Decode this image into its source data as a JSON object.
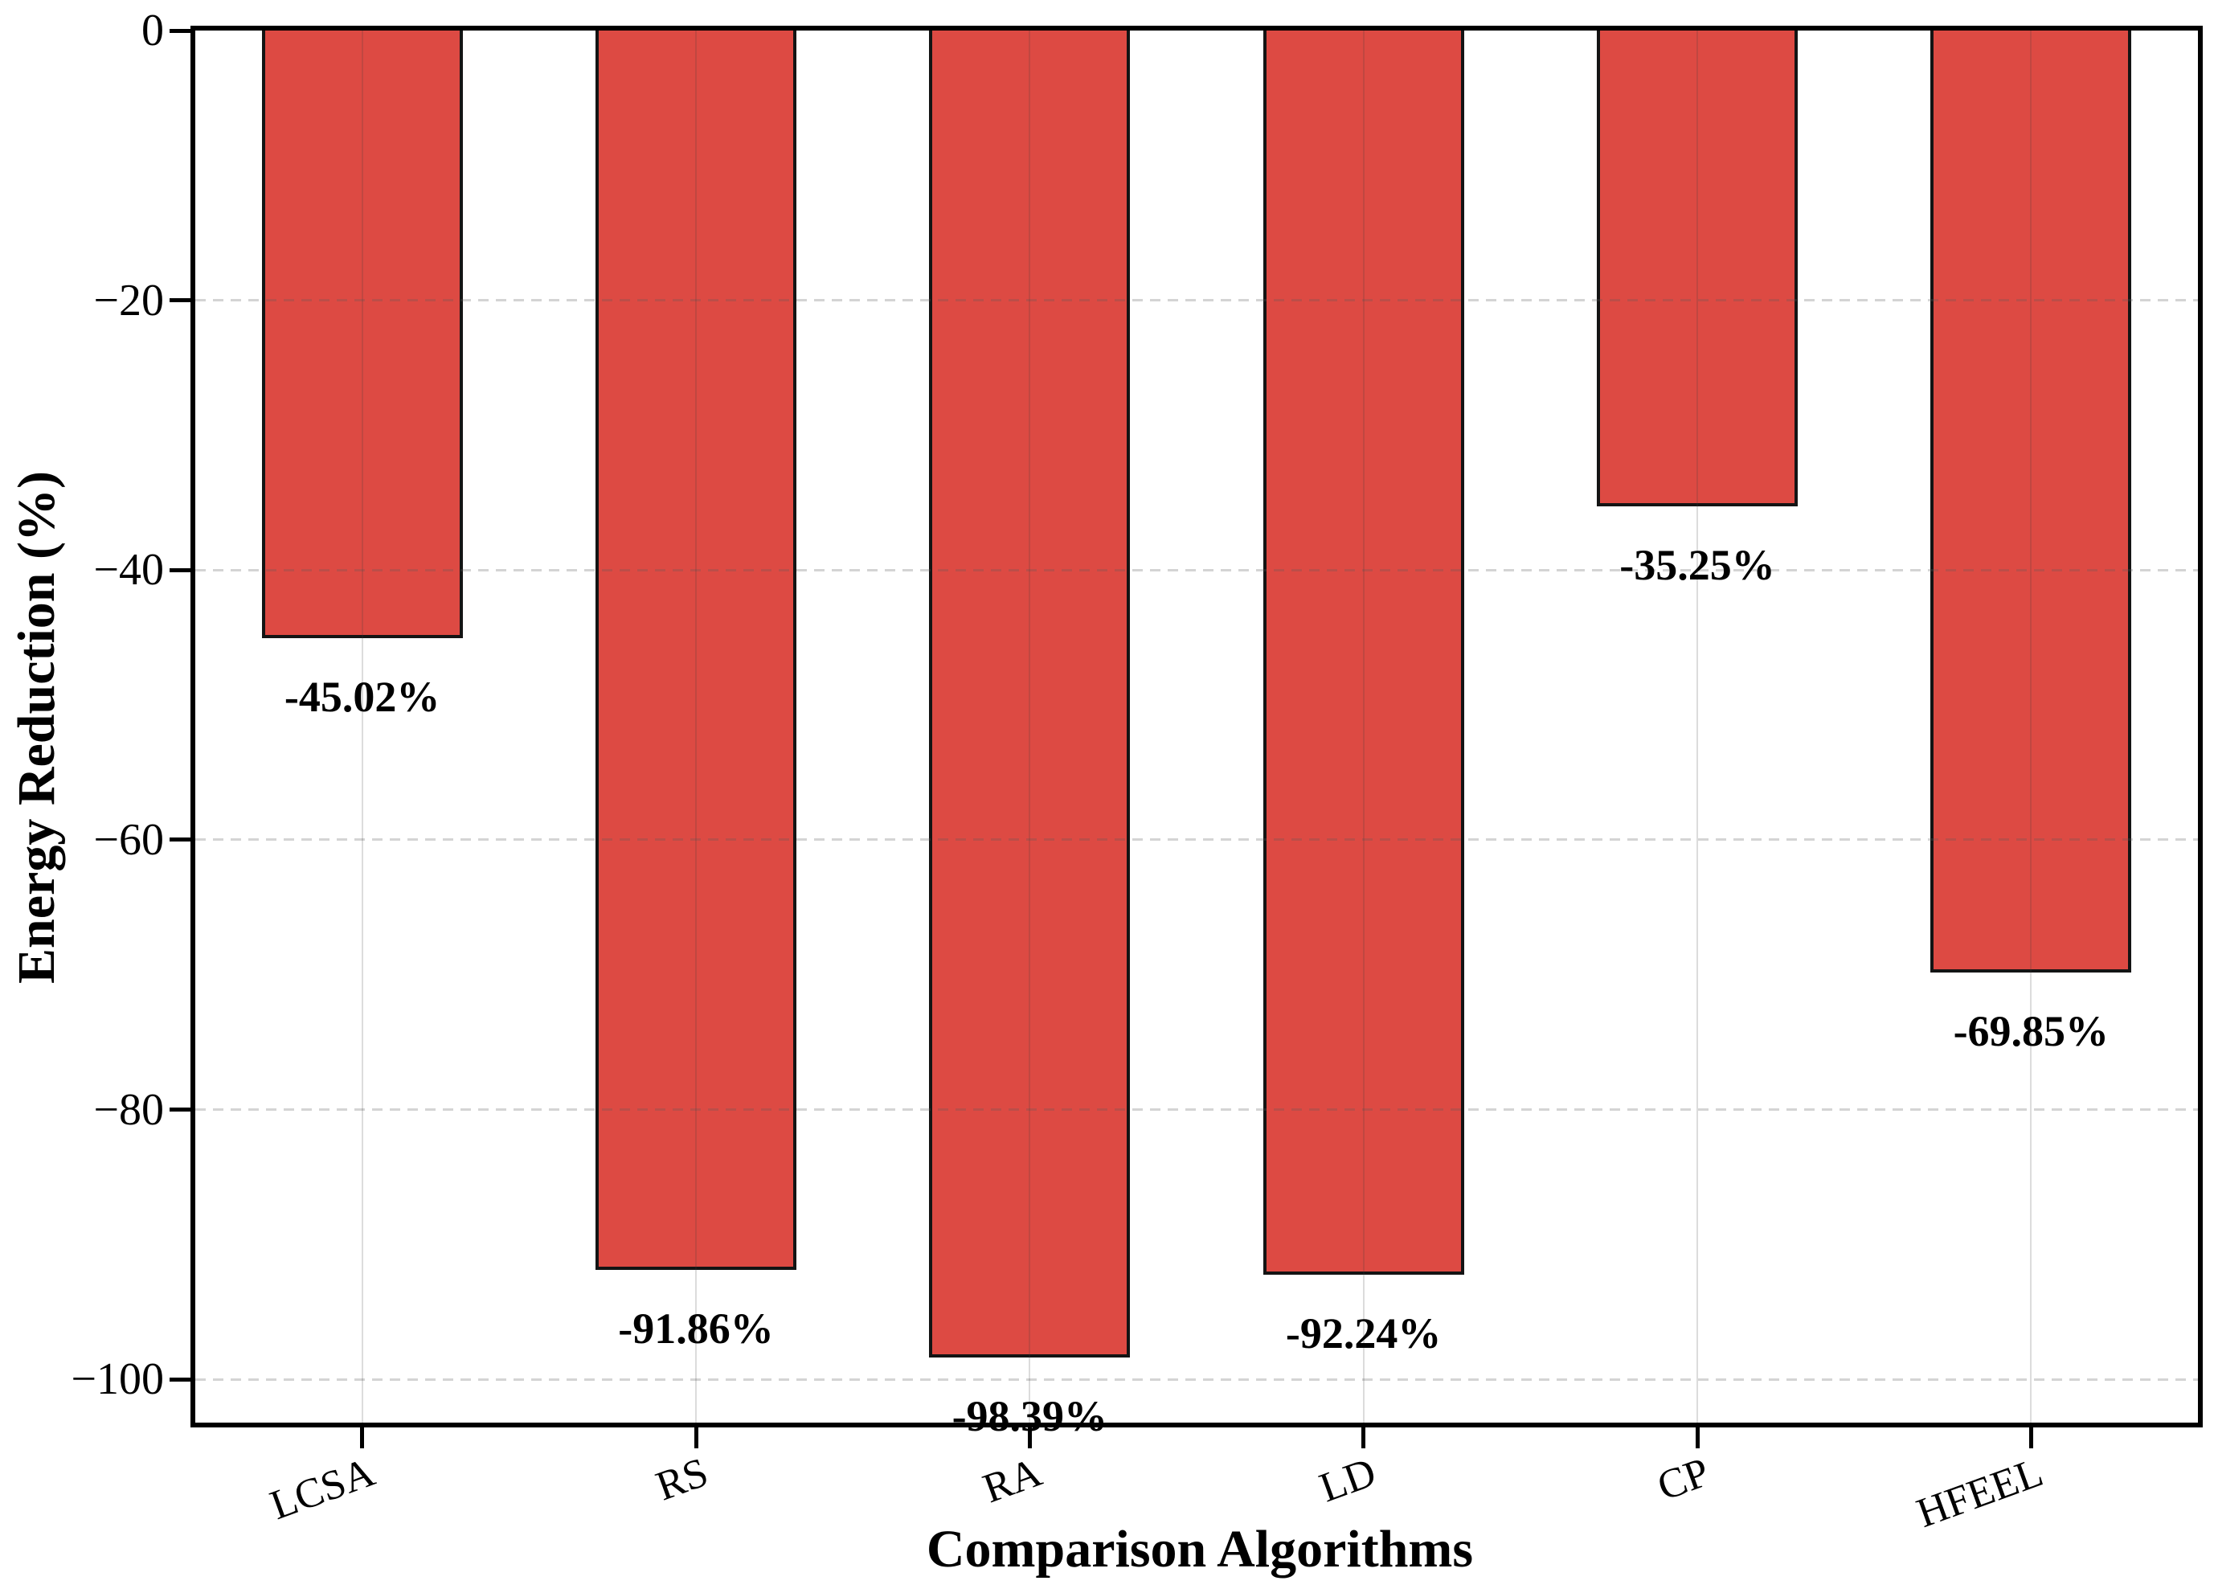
{
  "chart_data": {
    "type": "bar",
    "title": "",
    "xlabel": "Comparison Algorithms",
    "ylabel": "Energy Reduction (%)",
    "categories": [
      "LCSA",
      "RS",
      "RA",
      "LD",
      "CP",
      "HFEEL"
    ],
    "values": [
      -45.02,
      -91.86,
      -98.39,
      -92.24,
      -35.25,
      -69.85
    ],
    "bar_labels": [
      "-45.02%",
      "-91.86%",
      "-98.39%",
      "-92.24%",
      "-35.25%",
      "-69.85%"
    ],
    "ylim": [
      -103.2,
      0
    ],
    "yticks": [
      0,
      -20,
      -40,
      -60,
      -80,
      -100
    ],
    "ytick_labels": [
      "0",
      "−20",
      "−40",
      "−60",
      "−80",
      "−100"
    ],
    "grid": {
      "horizontal_style": "dashed",
      "vertical_style": "solid",
      "axisbelow": false
    },
    "legend": "none",
    "colors": {
      "bar_fill": "#dd4a43",
      "bar_edge": "#141414",
      "axis": "#000000",
      "background": "#ffffff",
      "grid_line": "#d9d9d9"
    }
  }
}
